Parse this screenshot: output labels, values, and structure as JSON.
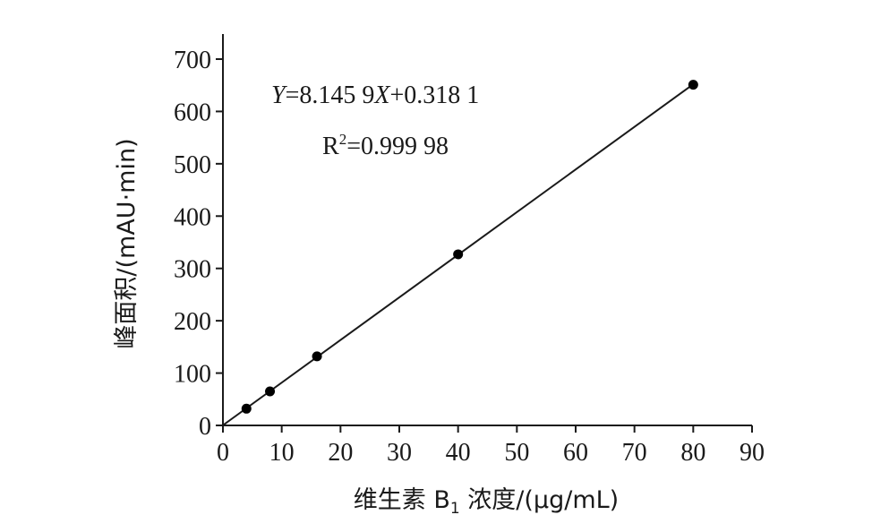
{
  "chart_data": {
    "type": "scatter",
    "xlabel_parts": {
      "main": "维生素 B",
      "sub": "1",
      "rest": " 浓度/(μg/mL)"
    },
    "ylabel": "峰面积/(mAU·min)",
    "xlim": [
      0,
      90
    ],
    "ylim": [
      0,
      700
    ],
    "xticks": [
      0,
      10,
      20,
      30,
      40,
      50,
      60,
      70,
      80,
      90
    ],
    "yticks": [
      0,
      100,
      200,
      300,
      400,
      500,
      600,
      700
    ],
    "xtick_labels": [
      "0",
      "10",
      "20",
      "30",
      "40",
      "50",
      "60",
      "70",
      "80",
      "90"
    ],
    "ytick_labels": [
      "0",
      "100",
      "200",
      "300",
      "400",
      "500",
      "600",
      "700"
    ],
    "series": [
      {
        "x": [
          4,
          8,
          16,
          40,
          80
        ],
        "y": [
          32,
          65,
          132,
          327,
          651
        ]
      }
    ],
    "fit": {
      "slope": 8.1459,
      "intercept": 0.3181,
      "x_range": [
        0,
        80
      ]
    },
    "annotations": {
      "equation": {
        "y_var": "Y",
        "mid": "=8.145 9",
        "x_var": "X",
        "tail": "+0.318 1"
      },
      "r2": {
        "base": "R",
        "sup": "2",
        "value": "=0.999 98"
      }
    },
    "grid": false,
    "colors": {
      "line": "#1a1a1a",
      "marker": "#000000",
      "text": "#1a1a1a"
    }
  }
}
